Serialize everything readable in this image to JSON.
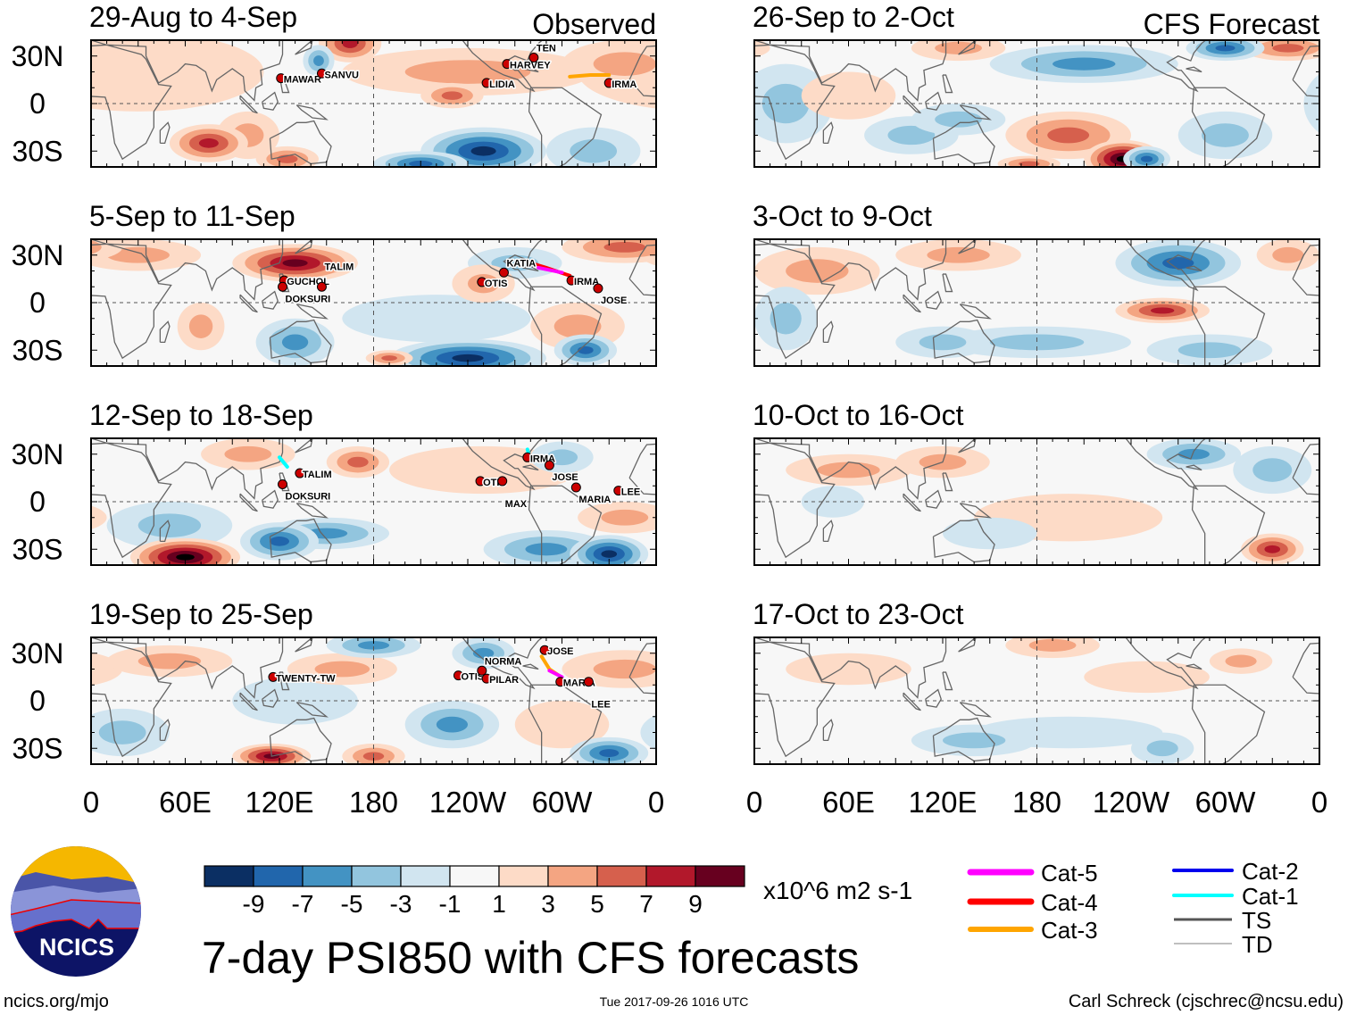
{
  "figure_title": "7-day PSI850 with CFS forecasts",
  "column_labels": {
    "left": "Observed",
    "right": "CFS Forecast"
  },
  "footer": {
    "url": "ncics.org/mjo",
    "timestamp": "Tue 2017-09-26 1016 UTC",
    "author": "Carl Schreck (cjschrec@ncsu.edu)"
  },
  "logo_text": "NCICS",
  "lat_labels": [
    "30N",
    "0",
    "30S"
  ],
  "lon_labels": [
    "0",
    "60E",
    "120E",
    "180",
    "120W",
    "60W",
    "0"
  ],
  "colorbar": {
    "units": "x10^6 m2 s-1",
    "tick_labels": [
      "-9",
      "-7",
      "-5",
      "-3",
      "-1",
      "1",
      "3",
      "5",
      "7",
      "9"
    ],
    "colors": [
      "#0b2f63",
      "#2166ac",
      "#4393c3",
      "#92c5de",
      "#d1e5f0",
      "#f7f7f7",
      "#fddbc7",
      "#f4a582",
      "#d6604d",
      "#b2182b",
      "#67001f"
    ]
  },
  "legend": [
    {
      "label": "Cat-5",
      "color": "#ff00ff"
    },
    {
      "label": "Cat-4",
      "color": "#ff0000"
    },
    {
      "label": "Cat-3",
      "color": "#ffa500"
    },
    {
      "label": "Cat-2",
      "color": "#0000ee"
    },
    {
      "label": "Cat-1",
      "color": "#00ffff"
    },
    {
      "label": "TS",
      "color": "#555555"
    },
    {
      "label": "TD",
      "color": "#aaaaaa"
    }
  ],
  "chart_data": {
    "type": "heatmap",
    "variable": "850-hPa streamfunction anomaly",
    "lon_range": [
      0,
      360
    ],
    "lat_range": [
      -40,
      40
    ],
    "panels": [
      {
        "title": "29-Aug to 4-Sep",
        "kind": "observed",
        "anomalies": [
          [
            165,
            38,
            7,
            20,
            12
          ],
          [
            75,
            -25,
            7,
            25,
            12
          ],
          [
            125,
            -35,
            5,
            20,
            8
          ],
          [
            240,
            20,
            3,
            80,
            15
          ],
          [
            230,
            5,
            5,
            20,
            8
          ],
          [
            340,
            25,
            3,
            40,
            15
          ],
          [
            30,
            20,
            1,
            80,
            25
          ],
          [
            100,
            -20,
            3,
            20,
            15
          ],
          [
            145,
            27,
            -5,
            10,
            10
          ],
          [
            250,
            -30,
            -9,
            40,
            15
          ],
          [
            210,
            -38,
            -7,
            30,
            8
          ],
          [
            320,
            -30,
            -3,
            30,
            15
          ]
        ],
        "storms": [
          {
            "name": "MAWAR",
            "lon": 121,
            "lat": 16
          },
          {
            "name": "SANVU",
            "lon": 147,
            "lat": 19
          },
          {
            "name": "LIDIA",
            "lon": 252,
            "lat": 13
          },
          {
            "name": "HARVEY",
            "lon": 265,
            "lat": 25
          },
          {
            "name": "TEN",
            "lon": 282,
            "lat": 29
          },
          {
            "name": "IRMA",
            "lon": 330,
            "lat": 13
          }
        ],
        "tracks": [
          {
            "cat": "Cat-3",
            "pts": [
              [
                305,
                17
              ],
              [
                318,
                18
              ],
              [
                330,
                18
              ]
            ]
          }
        ]
      },
      {
        "title": "5-Sep to 11-Sep",
        "kind": "observed",
        "anomalies": [
          [
            130,
            25,
            9,
            40,
            12
          ],
          [
            70,
            -15,
            3,
            15,
            15
          ],
          [
            250,
            12,
            3,
            20,
            12
          ],
          [
            190,
            -35,
            5,
            15,
            5
          ],
          [
            340,
            35,
            5,
            40,
            10
          ],
          [
            30,
            30,
            3,
            40,
            10
          ],
          [
            310,
            -15,
            3,
            30,
            15
          ],
          [
            130,
            -25,
            -5,
            25,
            15
          ],
          [
            240,
            -35,
            -9,
            50,
            12
          ],
          [
            315,
            -30,
            -7,
            20,
            10
          ],
          [
            270,
            25,
            -3,
            30,
            10
          ],
          [
            220,
            -10,
            -1,
            60,
            15
          ]
        ],
        "storms": [
          {
            "name": "GUCHOL",
            "lon": 123,
            "lat": 14
          },
          {
            "name": "DOKSURI",
            "lon": 122,
            "lat": 10
          },
          {
            "name": "TALIM",
            "lon": 147,
            "lat": 10
          },
          {
            "name": "OTIS",
            "lon": 249,
            "lat": 13
          },
          {
            "name": "KATIA",
            "lon": 263,
            "lat": 19
          },
          {
            "name": "IRMA",
            "lon": 306,
            "lat": 14
          },
          {
            "name": "JOSE",
            "lon": 323,
            "lat": 9
          }
        ],
        "tracks": [
          {
            "cat": "Cat-4",
            "pts": [
              [
                305,
                17
              ],
              [
                290,
                22
              ],
              [
                280,
                25
              ]
            ]
          },
          {
            "cat": "Cat-5",
            "pts": [
              [
                300,
                19
              ],
              [
                285,
                22
              ]
            ]
          }
        ]
      },
      {
        "title": "12-Sep to 18-Sep",
        "kind": "observed",
        "anomalies": [
          [
            60,
            -35,
            11,
            35,
            12
          ],
          [
            170,
            25,
            5,
            20,
            10
          ],
          [
            340,
            -10,
            3,
            30,
            10
          ],
          [
            250,
            20,
            1,
            60,
            15
          ],
          [
            100,
            30,
            3,
            30,
            10
          ],
          [
            120,
            -25,
            -7,
            25,
            12
          ],
          [
            150,
            -20,
            -5,
            40,
            10
          ],
          [
            330,
            -33,
            -9,
            25,
            12
          ],
          [
            290,
            -30,
            -5,
            40,
            12
          ],
          [
            50,
            -15,
            -3,
            40,
            15
          ],
          [
            300,
            28,
            -3,
            20,
            10
          ]
        ],
        "storms": [
          {
            "name": "TALIM",
            "lon": 133,
            "lat": 18
          },
          {
            "name": "DOKSURI",
            "lon": 122,
            "lat": 11
          },
          {
            "name": "OTIS",
            "lon": 248,
            "lat": 13
          },
          {
            "name": "MAX",
            "lon": 262,
            "lat": 13
          },
          {
            "name": "IRMA",
            "lon": 278,
            "lat": 28
          },
          {
            "name": "JOSE",
            "lon": 292,
            "lat": 23
          },
          {
            "name": "MARIA",
            "lon": 309,
            "lat": 9
          },
          {
            "name": "LEE",
            "lon": 336,
            "lat": 7
          }
        ],
        "tracks": [
          {
            "cat": "Cat-1",
            "pts": [
              [
                120,
                28
              ],
              [
                125,
                22
              ]
            ]
          },
          {
            "cat": "Cat-1",
            "pts": [
              [
                278,
                33
              ],
              [
                280,
                26
              ]
            ]
          }
        ]
      },
      {
        "title": "19-Sep to 25-Sep",
        "kind": "observed",
        "anomalies": [
          [
            115,
            -35,
            9,
            25,
            8
          ],
          [
            180,
            -35,
            5,
            20,
            8
          ],
          [
            160,
            20,
            3,
            35,
            10
          ],
          [
            340,
            20,
            3,
            40,
            12
          ],
          [
            50,
            25,
            3,
            40,
            10
          ],
          [
            300,
            -15,
            1,
            30,
            15
          ],
          [
            180,
            35,
            -5,
            30,
            8
          ],
          [
            230,
            -15,
            -5,
            30,
            15
          ],
          [
            330,
            -33,
            -7,
            25,
            10
          ],
          [
            250,
            30,
            -5,
            20,
            10
          ],
          [
            20,
            -20,
            -3,
            30,
            15
          ],
          [
            130,
            0,
            -1,
            40,
            15
          ]
        ],
        "storms": [
          {
            "name": "TWENTY-TW",
            "lon": 116,
            "lat": 15
          },
          {
            "name": "OTIS",
            "lon": 234,
            "lat": 16
          },
          {
            "name": "NORMA",
            "lon": 249,
            "lat": 19
          },
          {
            "name": "PILAR",
            "lon": 252,
            "lat": 14
          },
          {
            "name": "JOSE",
            "lon": 289,
            "lat": 32
          },
          {
            "name": "MARIA",
            "lon": 299,
            "lat": 12
          },
          {
            "name": "LEE",
            "lon": 317,
            "lat": 12
          }
        ],
        "tracks": [
          {
            "cat": "Cat-3",
            "pts": [
              [
                287,
                28
              ],
              [
                292,
                20
              ],
              [
                298,
                16
              ]
            ]
          },
          {
            "cat": "Cat-5",
            "pts": [
              [
                292,
                19
              ],
              [
                300,
                15
              ]
            ]
          }
        ]
      },
      {
        "title": "26-Sep to 2-Oct",
        "kind": "forecast",
        "anomalies": [
          [
            235,
            -35,
            11,
            25,
            12
          ],
          [
            200,
            -20,
            5,
            40,
            15
          ],
          [
            340,
            35,
            5,
            30,
            8
          ],
          [
            130,
            35,
            3,
            30,
            8
          ],
          [
            60,
            5,
            1,
            30,
            15
          ],
          [
            175,
            -38,
            5,
            20,
            5
          ],
          [
            210,
            25,
            -5,
            60,
            12
          ],
          [
            300,
            35,
            -7,
            25,
            8
          ],
          [
            20,
            0,
            -3,
            30,
            25
          ],
          [
            100,
            -20,
            -3,
            30,
            12
          ],
          [
            250,
            -35,
            -7,
            15,
            8
          ],
          [
            300,
            -20,
            -3,
            30,
            15
          ],
          [
            130,
            -10,
            -3,
            30,
            10
          ]
        ],
        "storms": [],
        "tracks": []
      },
      {
        "title": "3-Oct to 9-Oct",
        "kind": "forecast",
        "anomalies": [
          [
            260,
            -5,
            7,
            30,
            8
          ],
          [
            130,
            30,
            3,
            40,
            10
          ],
          [
            40,
            20,
            3,
            40,
            15
          ],
          [
            340,
            30,
            3,
            20,
            10
          ],
          [
            270,
            25,
            -7,
            40,
            15
          ],
          [
            180,
            -25,
            -3,
            60,
            10
          ],
          [
            290,
            -30,
            -3,
            40,
            10
          ],
          [
            120,
            -25,
            -3,
            30,
            10
          ],
          [
            20,
            -10,
            -3,
            20,
            20
          ]
        ],
        "storms": [],
        "tracks": []
      },
      {
        "title": "10-Oct to 16-Oct",
        "kind": "forecast",
        "anomalies": [
          [
            330,
            -30,
            7,
            20,
            10
          ],
          [
            60,
            20,
            3,
            40,
            10
          ],
          [
            200,
            -10,
            1,
            60,
            15
          ],
          [
            120,
            25,
            3,
            30,
            10
          ],
          [
            280,
            30,
            -5,
            30,
            10
          ],
          [
            330,
            20,
            -3,
            25,
            15
          ],
          [
            150,
            -20,
            -1,
            30,
            10
          ],
          [
            50,
            0,
            -1,
            20,
            10
          ]
        ],
        "storms": [],
        "tracks": []
      },
      {
        "title": "17-Oct to 23-Oct",
        "kind": "forecast",
        "anomalies": [
          [
            190,
            35,
            3,
            30,
            8
          ],
          [
            250,
            15,
            1,
            40,
            10
          ],
          [
            60,
            20,
            1,
            40,
            10
          ],
          [
            310,
            25,
            3,
            20,
            8
          ],
          [
            140,
            -25,
            -3,
            40,
            10
          ],
          [
            200,
            -20,
            -1,
            60,
            10
          ],
          [
            260,
            -30,
            -3,
            20,
            10
          ]
        ],
        "storms": [],
        "tracks": []
      }
    ]
  }
}
